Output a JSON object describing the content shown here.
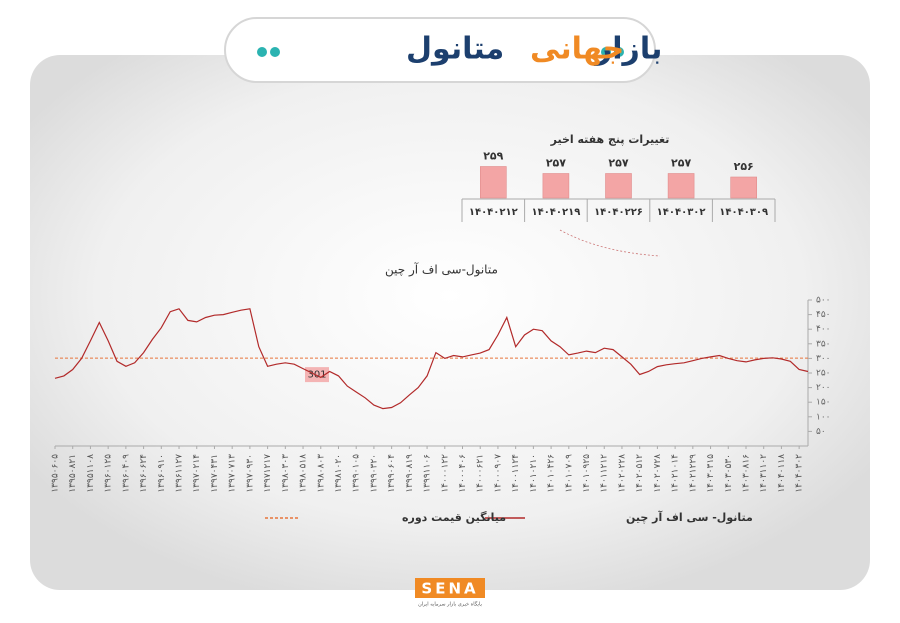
{
  "header": {
    "title_words": [
      "بازار",
      "جهانی",
      "متانول"
    ]
  },
  "logo": {
    "name": "SENA",
    "tagline": "پایگاه خبری بازار سرمایه ایران"
  },
  "chart_data": [
    {
      "type": "line",
      "title": "متانول-سی اف آر چین",
      "categories": [
        "۱۳۹۵۰۶۰۵",
        null,
        "۱۳۹۵۰۸۲۱",
        null,
        "۱۳۹۵۱۱۰۸",
        null,
        "۱۳۹۶۰۱۲۵",
        null,
        "۱۳۹۶۰۴۰۹",
        null,
        "۱۳۹۶۰۶۲۴",
        null,
        "۱۳۹۶۰۹۱۰",
        null,
        "۱۳۹۶۱۱۲۷",
        null,
        "۱۳۹۷۰۲۱۴",
        null,
        "۱۳۹۷۰۴۳۱",
        null,
        "۱۳۹۷۰۷۱۳",
        null,
        "۱۳۹۷۰۹۳۰",
        null,
        "۱۳۹۷۱۲۱۷",
        null,
        "۱۳۹۸۰۳۰۳",
        null,
        "۱۳۹۸۰۵۱۸",
        null,
        "۱۳۹۸۰۸۰۳",
        null,
        "۱۳۹۸۱۰۲۰",
        null,
        "۱۳۹۹۰۱۰۵",
        null,
        "۱۳۹۹۰۳۲۰",
        null,
        "۱۳۹۹۰۶۰۴",
        null,
        "۱۳۹۹۰۸۱۹",
        null,
        "۱۳۹۹۱۱۰۶",
        null,
        "۱۴۰۰۰۱۲۲",
        null,
        "۱۴۰۰۰۴۰۶",
        null,
        "۱۴۰۰۰۶۲۱",
        null,
        "۱۴۰۰۰۹۰۷",
        null,
        "۱۴۰۰۱۱۲۴",
        null,
        "۱۴۰۱۰۲۱۰",
        null,
        "۱۴۰۱۰۴۲۶",
        null,
        "۱۴۰۱۰۷۰۹",
        null,
        "۱۴۰۱۰۹۲۵",
        null,
        "۱۴۰۱۱۲۱۲",
        null,
        "۱۴۰۲۰۲۲۸",
        null,
        "۱۴۰۲۰۵۱۲",
        null,
        "۱۴۰۲۰۷۲۸",
        null,
        "۱۴۰۲۱۰۱۴",
        null,
        "۱۴۰۲۱۲۲۹",
        null,
        "۱۴۰۳۰۳۱۵",
        null,
        "۱۴۰۳۰۵۳۰",
        null,
        "۱۴۰۳۰۸۱۶",
        null,
        "۱۴۰۳۱۱۰۲",
        null,
        "۱۴۰۴۰۱۱۸",
        null,
        "۱۴۰۴۰۳۰۲",
        null
      ],
      "series": [
        {
          "name": "متانول- سی اف آر چین",
          "color": "#b22a2a",
          "values": [
            232,
            240,
            262,
            300,
            360,
            423,
            360,
            290,
            273,
            285,
            320,
            365,
            405,
            460,
            470,
            430,
            425,
            440,
            448,
            450,
            458,
            465,
            470,
            340,
            273,
            280,
            285,
            280,
            265,
            250,
            235,
            255,
            240,
            205,
            185,
            165,
            140,
            128,
            132,
            148,
            175,
            200,
            240,
            320,
            300,
            310,
            305,
            312,
            318,
            330,
            380,
            440,
            340,
            380,
            400,
            395,
            360,
            340,
            312,
            318,
            325,
            320,
            335,
            330,
            305,
            280,
            245,
            255,
            272,
            278,
            282,
            285,
            292,
            300,
            305,
            310,
            300,
            292,
            288,
            295,
            300,
            302,
            298,
            290,
            262,
            255
          ]
        }
      ],
      "reference": {
        "name": "میانگین قیمت دوره",
        "value": 301,
        "color": "#e8743b"
      },
      "ylim": [
        0,
        500
      ],
      "yticks": [
        {
          "value": 50,
          "label": "۵۰"
        },
        {
          "value": 100,
          "label": "۱۰۰"
        },
        {
          "value": 150,
          "label": "۱۵۰"
        },
        {
          "value": 200,
          "label": "۲۰۰"
        },
        {
          "value": 250,
          "label": "۲۵۰"
        },
        {
          "value": 300,
          "label": "۳۰۰"
        },
        {
          "value": 350,
          "label": "۳۵۰"
        },
        {
          "value": 400,
          "label": "۴۰۰"
        },
        {
          "value": 450,
          "label": "۴۵۰"
        },
        {
          "value": 500,
          "label": "۵۰۰"
        }
      ],
      "grid": false
    },
    {
      "type": "bar",
      "title": "تغییرات پنج هفته اخیر",
      "categories": [
        "۱۴۰۴۰۲۱۲",
        "۱۴۰۴۰۲۱۹",
        "۱۴۰۴۰۲۲۶",
        "۱۴۰۴۰۳۰۲",
        "۱۴۰۴۰۳۰۹"
      ],
      "values": [
        259,
        257,
        257,
        257,
        256
      ],
      "value_labels": [
        "۲۵۹",
        "۲۵۷",
        "۲۵۷",
        "۲۵۷",
        "۲۵۶"
      ],
      "color": "#f3a5a5",
      "ylim": [
        250,
        260
      ]
    }
  ]
}
